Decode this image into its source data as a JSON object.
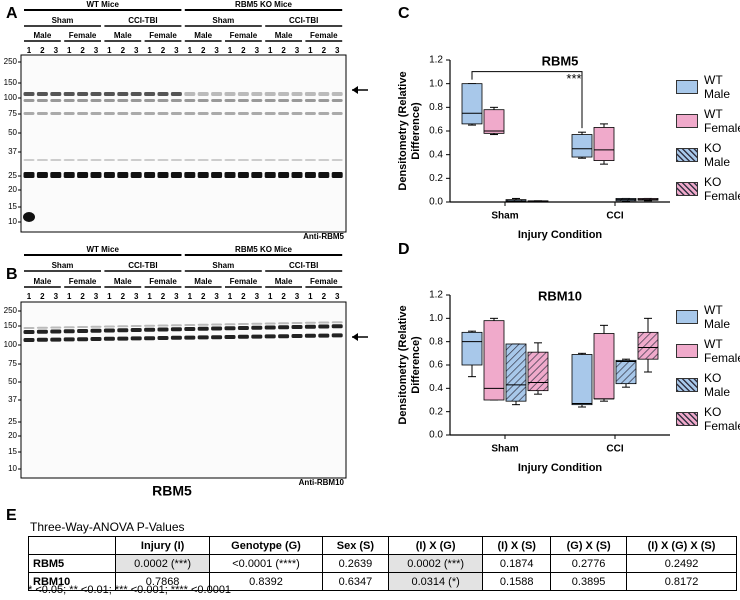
{
  "panel_labels": [
    "A",
    "B",
    "C",
    "D",
    "E"
  ],
  "blots": [
    {
      "groups": [
        "WT Mice",
        "RBM5 KO Mice"
      ],
      "conditions": [
        "Sham",
        "CCI-TBI"
      ],
      "sexes": [
        "Male",
        "Female"
      ],
      "lanes": [
        "1",
        "2",
        "3"
      ],
      "ladder": [
        "250",
        "150",
        "100",
        "75",
        "50",
        "37",
        "25",
        "20",
        "15",
        "10"
      ],
      "antibody": "Anti-RBM5"
    },
    {
      "groups": [
        "WT Mice",
        "RBM5 KO Mice"
      ],
      "conditions": [
        "Sham",
        "CCI-TBI"
      ],
      "sexes": [
        "Male",
        "Female"
      ],
      "lanes": [
        "1",
        "2",
        "3"
      ],
      "ladder": [
        "250",
        "150",
        "100",
        "75",
        "50",
        "37",
        "25",
        "20",
        "15",
        "10"
      ],
      "antibody": "Anti-RBM10",
      "caption": "RBM5"
    }
  ],
  "chart_data": [
    {
      "type": "box",
      "title": "RBM5",
      "xlabel": "Injury Condition",
      "ylabel": "Densitometry (Relative Difference)",
      "categories": [
        "Sham",
        "CCI"
      ],
      "ylim": [
        0,
        1.2
      ],
      "yticks": [
        {
          "value": 0,
          "label": "0.0"
        },
        0.2,
        0.4,
        0.6,
        0.8,
        {
          "value": 1,
          "label": "1.0"
        },
        1.2
      ],
      "annotations": [
        "***"
      ],
      "series": [
        {
          "name": "WT Male",
          "color": "#a8c8ea",
          "hatch": false,
          "values": [
            [
              0.65,
              0.66,
              0.75,
              1.0,
              1.0
            ],
            [
              0.37,
              0.38,
              0.45,
              0.57,
              0.59
            ]
          ]
        },
        {
          "name": "WT Female",
          "color": "#f0aacb",
          "hatch": false,
          "values": [
            [
              0.57,
              0.58,
              0.6,
              0.78,
              0.8
            ],
            [
              0.32,
              0.35,
              0.44,
              0.63,
              0.66
            ]
          ]
        },
        {
          "name": "KO Male",
          "color": "#a8c8ea",
          "hatch": true,
          "values": [
            [
              0.0,
              0.005,
              0.01,
              0.02,
              0.03
            ],
            [
              0.005,
              0.01,
              0.02,
              0.03,
              0.03
            ]
          ]
        },
        {
          "name": "KO Female",
          "color": "#f0aacb",
          "hatch": true,
          "values": [
            [
              0.0,
              0.0,
              0.005,
              0.01,
              0.01
            ],
            [
              0.01,
              0.015,
              0.02,
              0.03,
              0.03
            ]
          ]
        }
      ]
    },
    {
      "type": "box",
      "title": "RBM10",
      "xlabel": "Injury Condition",
      "ylabel": "Densitometry (Relative Difference)",
      "categories": [
        "Sham",
        "CCI"
      ],
      "ylim": [
        0,
        1.2
      ],
      "yticks": [
        {
          "value": 0,
          "label": "0.0"
        },
        0.2,
        0.4,
        0.6,
        0.8,
        {
          "value": 1,
          "label": "1.0"
        },
        1.2
      ],
      "series": [
        {
          "name": "WT Male",
          "color": "#a8c8ea",
          "hatch": false,
          "values": [
            [
              0.5,
              0.6,
              0.8,
              0.88,
              0.89
            ],
            [
              0.24,
              0.26,
              0.27,
              0.69,
              0.7
            ]
          ]
        },
        {
          "name": "WT Female",
          "color": "#f0aacb",
          "hatch": false,
          "values": [
            [
              0.3,
              0.3,
              0.4,
              0.98,
              1.0
            ],
            [
              0.29,
              0.31,
              0.31,
              0.87,
              0.94
            ]
          ]
        },
        {
          "name": "KO Male",
          "color": "#a8c8ea",
          "hatch": true,
          "values": [
            [
              0.26,
              0.29,
              0.43,
              0.78,
              0.78
            ],
            [
              0.41,
              0.44,
              0.63,
              0.64,
              0.65
            ]
          ]
        },
        {
          "name": "KO Female",
          "color": "#f0aacb",
          "hatch": true,
          "values": [
            [
              0.35,
              0.38,
              0.45,
              0.71,
              0.79
            ],
            [
              0.54,
              0.65,
              0.75,
              0.88,
              1.0
            ]
          ]
        }
      ]
    }
  ],
  "table": {
    "title": "Three-Way-ANOVA P-Values",
    "columns": [
      "Injury (I)",
      "Genotype (G)",
      "Sex (S)",
      "(I) X (G)",
      "(I) X (S)",
      "(G) X (S)",
      "(I) X (G) X (S)"
    ],
    "rows": [
      {
        "label": "RBM5",
        "cells": [
          {
            "text": "0.0002 (***)",
            "shaded": true
          },
          {
            "text": "<0.0001 (****)",
            "shaded": false
          },
          {
            "text": "0.2639",
            "shaded": false
          },
          {
            "text": "0.0002 (***)",
            "shaded": true
          },
          {
            "text": "0.1874",
            "shaded": false
          },
          {
            "text": "0.2776",
            "shaded": false
          },
          {
            "text": "0.2492",
            "shaded": false
          }
        ]
      },
      {
        "label": "RBM10",
        "cells": [
          {
            "text": "0.7868",
            "shaded": false
          },
          {
            "text": "0.8392",
            "shaded": false
          },
          {
            "text": "0.6347",
            "shaded": false
          },
          {
            "text": "0.0314 (*)",
            "shaded": true
          },
          {
            "text": "0.1588",
            "shaded": false
          },
          {
            "text": "0.3895",
            "shaded": false
          },
          {
            "text": "0.8172",
            "shaded": false
          }
        ]
      }
    ],
    "footnote": "* <0.05; ** <0.01; *** <0.001; **** <0.0001"
  }
}
